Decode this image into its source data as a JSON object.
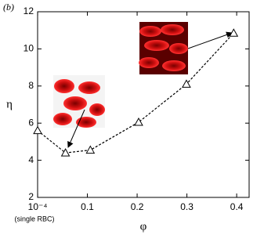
{
  "chart_data": {
    "type": "line",
    "title": "(b)",
    "x_label": "φ",
    "y_label": "η",
    "annotations": [
      "(single RBC)"
    ],
    "x": [
      0.0001,
      0.056,
      0.106,
      0.203,
      0.299,
      0.394
    ],
    "series": [
      {
        "name": "η",
        "color": "#000000",
        "values": [
          5.6,
          4.4,
          4.55,
          6.05,
          8.1,
          10.85
        ]
      }
    ],
    "xlim": [
      0,
      0.425
    ],
    "ylim": [
      2,
      12
    ],
    "xticks": [
      {
        "value": 0.0001,
        "label": "10⁻⁴"
      },
      0.1,
      0.2,
      0.3,
      0.4
    ],
    "yticks": [
      2,
      4,
      6,
      8,
      10,
      12
    ]
  }
}
